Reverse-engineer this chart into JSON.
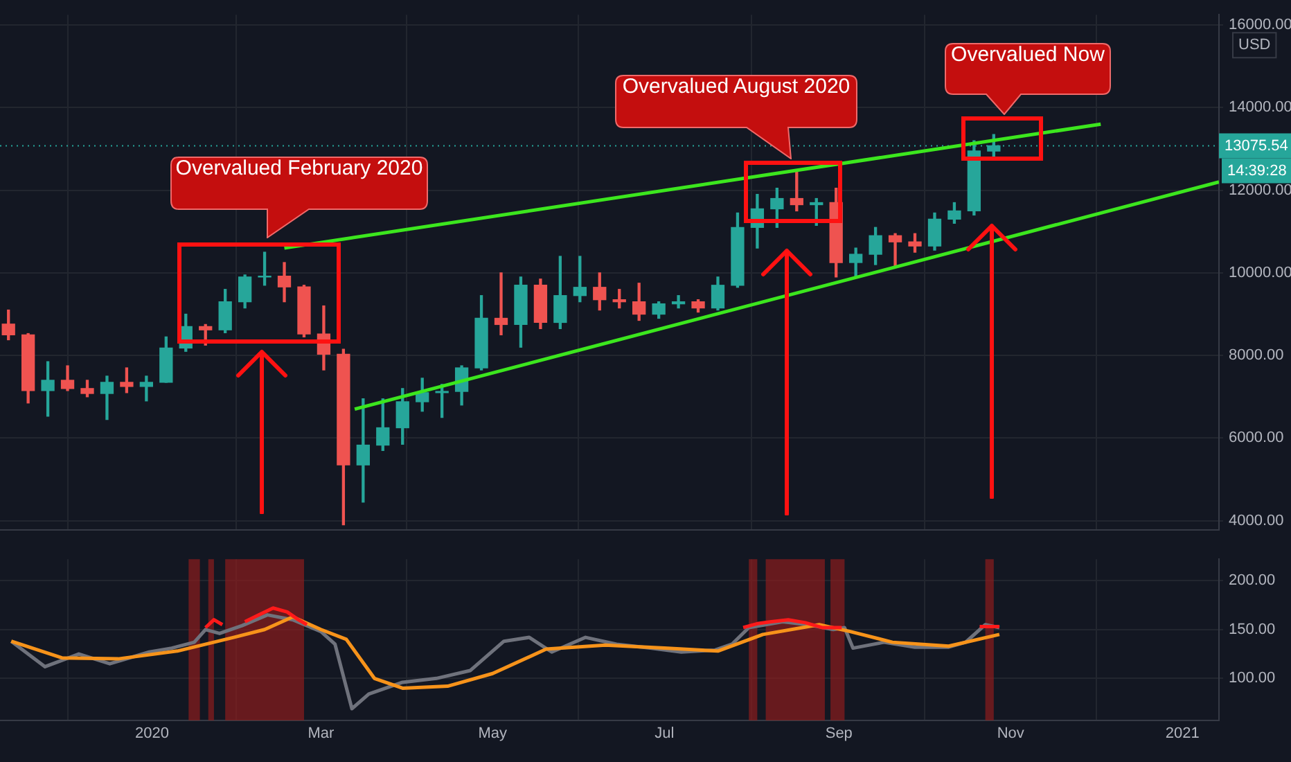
{
  "chart_data": [
    {
      "type": "candlestick",
      "ylabel": "USD",
      "x": [
        "2019-11-11",
        "2019-11-18",
        "2019-11-25",
        "2019-12-02",
        "2019-12-09",
        "2019-12-16",
        "2019-12-23",
        "2019-12-30",
        "2020-01-06",
        "2020-01-13",
        "2020-01-20",
        "2020-01-27",
        "2020-02-03",
        "2020-02-10",
        "2020-02-17",
        "2020-02-24",
        "2020-03-02",
        "2020-03-09",
        "2020-03-16",
        "2020-03-23",
        "2020-03-30",
        "2020-04-06",
        "2020-04-13",
        "2020-04-20",
        "2020-04-27",
        "2020-05-04",
        "2020-05-11",
        "2020-05-18",
        "2020-05-25",
        "2020-06-01",
        "2020-06-08",
        "2020-06-15",
        "2020-06-22",
        "2020-06-29",
        "2020-07-06",
        "2020-07-13",
        "2020-07-20",
        "2020-07-27",
        "2020-08-03",
        "2020-08-10",
        "2020-08-17",
        "2020-08-24",
        "2020-08-31",
        "2020-09-07",
        "2020-09-14",
        "2020-09-21",
        "2020-09-28",
        "2020-10-05",
        "2020-10-12",
        "2020-10-19",
        "2020-10-26"
      ],
      "ohlc": [
        [
          8760,
          9100,
          8380,
          8500
        ],
        [
          8500,
          8530,
          6850,
          7150
        ],
        [
          7150,
          7850,
          6530,
          7400
        ],
        [
          7400,
          7750,
          7150,
          7200
        ],
        [
          7200,
          7400,
          7000,
          7080
        ],
        [
          7080,
          7500,
          6450,
          7350
        ],
        [
          7350,
          7700,
          7100,
          7250
        ],
        [
          7250,
          7500,
          6900,
          7350
        ],
        [
          7350,
          8450,
          7350,
          8180
        ],
        [
          8180,
          9000,
          8100,
          8700
        ],
        [
          8700,
          8750,
          8250,
          8620
        ],
        [
          8620,
          9600,
          8550,
          9300
        ],
        [
          9300,
          9950,
          9150,
          9900
        ],
        [
          9900,
          10500,
          9700,
          9920
        ],
        [
          9920,
          10250,
          9300,
          9660
        ],
        [
          9660,
          9700,
          8450,
          8520
        ],
        [
          8520,
          9200,
          7650,
          8030
        ],
        [
          8030,
          8150,
          3900,
          5350
        ],
        [
          5350,
          6950,
          4450,
          5830
        ],
        [
          5830,
          6950,
          5700,
          6250
        ],
        [
          6250,
          7200,
          5850,
          6880
        ],
        [
          6880,
          7450,
          6650,
          7100
        ],
        [
          7100,
          7300,
          6500,
          7130
        ],
        [
          7130,
          7750,
          6800,
          7700
        ],
        [
          7700,
          9450,
          7650,
          8900
        ],
        [
          8900,
          10000,
          8500,
          8750
        ],
        [
          8750,
          9900,
          8200,
          9700
        ],
        [
          9700,
          9850,
          8650,
          8800
        ],
        [
          8800,
          10400,
          8650,
          9450
        ],
        [
          9450,
          10400,
          9300,
          9650
        ],
        [
          9650,
          10000,
          9100,
          9350
        ],
        [
          9350,
          9600,
          9150,
          9300
        ],
        [
          9300,
          9750,
          8850,
          9000
        ],
        [
          9000,
          9300,
          8900,
          9250
        ],
        [
          9250,
          9450,
          9150,
          9300
        ],
        [
          9300,
          9350,
          9050,
          9150
        ],
        [
          9150,
          9900,
          9100,
          9700
        ],
        [
          9700,
          11450,
          9650,
          11100
        ],
        [
          11100,
          11900,
          10600,
          11550
        ],
        [
          11550,
          12050,
          11100,
          11800
        ],
        [
          11800,
          12450,
          11500,
          11650
        ],
        [
          11650,
          11800,
          11150,
          11700
        ],
        [
          11700,
          12050,
          9900,
          10250
        ],
        [
          10250,
          10600,
          9900,
          10450
        ],
        [
          10450,
          11100,
          10200,
          10900
        ],
        [
          10900,
          10950,
          10150,
          10750
        ],
        [
          10750,
          10950,
          10500,
          10650
        ],
        [
          10650,
          11450,
          10550,
          11300
        ],
        [
          11300,
          11700,
          11200,
          11500
        ],
        [
          11500,
          13200,
          11400,
          12950
        ],
        [
          12950,
          13350,
          12800,
          13075.54
        ]
      ],
      "colors": [
        "#ef5350",
        "#ef5350",
        "#26a69a",
        "#ef5350",
        "#ef5350",
        "#26a69a",
        "#ef5350",
        "#26a69a",
        "#26a69a",
        "#26a69a",
        "#ef5350",
        "#26a69a",
        "#26a69a",
        "#26a69a",
        "#ef5350",
        "#ef5350",
        "#ef5350",
        "#ef5350",
        "#26a69a",
        "#26a69a",
        "#26a69a",
        "#26a69a",
        "#26a69a",
        "#26a69a",
        "#26a69a",
        "#ef5350",
        "#26a69a",
        "#ef5350",
        "#26a69a",
        "#26a69a",
        "#ef5350",
        "#ef5350",
        "#ef5350",
        "#26a69a",
        "#26a69a",
        "#ef5350",
        "#26a69a",
        "#26a69a",
        "#26a69a",
        "#26a69a",
        "#ef5350",
        "#26a69a",
        "#ef5350",
        "#26a69a",
        "#26a69a",
        "#ef5350",
        "#ef5350",
        "#26a69a",
        "#26a69a",
        "#26a69a",
        "#26a69a"
      ],
      "series": [
        {
          "type": "line",
          "color": "#3ce61e",
          "x": [
            "2020-02-17",
            "2020-12-03"
          ],
          "values": [
            10600,
            13600
          ]
        },
        {
          "type": "line",
          "color": "#3ce61e",
          "x": [
            "2020-03-13",
            "2021-01-14"
          ],
          "values": [
            6700,
            12200
          ]
        }
      ],
      "marker": "none",
      "xlim": [
        "2019-11-08",
        "2021-01-14"
      ],
      "xticks": [
        {
          "value": "2020-01-01",
          "label": null
        },
        {
          "value": "2020-03-01",
          "label": null
        },
        {
          "value": "2020-05-01",
          "label": null
        },
        {
          "value": "2020-07-01",
          "label": null
        },
        {
          "value": "2020-09-01",
          "label": null
        },
        {
          "value": "2020-11-01",
          "label": null
        },
        {
          "value": "2021-01-01",
          "label": null
        }
      ],
      "ylim": [
        3780,
        16250
      ],
      "yticks": [
        {
          "value": 4000,
          "label": "4000.00"
        },
        {
          "value": 6000,
          "label": "6000.00"
        },
        {
          "value": 8000,
          "label": "8000.00"
        },
        {
          "value": 10000,
          "label": "10000.00"
        },
        {
          "value": 12000,
          "label": "12000.00"
        },
        {
          "value": 14000,
          "label": "14000.00"
        },
        {
          "value": 16000,
          "label": "16000.00"
        }
      ],
      "ref_lines": [
        {
          "axis": "y",
          "value": 13075.54,
          "label": "13075.54",
          "color": "#26a69a",
          "line_style": "dotted"
        }
      ],
      "annotations": [
        "Overvalued February 2020",
        "Overvalued August 2020",
        "Overvalued Now",
        "14:39:28"
      ],
      "grid": true,
      "tick_labels": "y",
      "legend": false
    },
    {
      "type": "line",
      "series": [
        {
          "color": "#6f727c",
          "x": [
            "2019-11-12",
            "2019-11-24",
            "2019-12-06",
            "2019-12-17",
            "2019-12-31",
            "2020-01-08",
            "2020-01-16",
            "2020-01-20",
            "2020-01-25",
            "2020-02-02",
            "2020-02-11",
            "2020-02-20",
            "2020-03-01",
            "2020-03-06",
            "2020-03-12",
            "2020-03-18",
            "2020-03-30",
            "2020-04-11",
            "2020-04-23",
            "2020-05-05",
            "2020-05-14",
            "2020-05-22",
            "2020-06-03",
            "2020-06-14",
            "2020-06-26",
            "2020-07-07",
            "2020-07-19",
            "2020-07-25",
            "2020-07-31",
            "2020-08-12",
            "2020-08-21",
            "2020-08-30",
            "2020-09-03",
            "2020-09-06",
            "2020-09-17",
            "2020-09-28",
            "2020-10-10",
            "2020-10-16",
            "2020-10-23",
            "2020-10-28"
          ],
          "values": [
            138,
            112,
            125,
            115,
            127,
            131,
            137,
            150,
            146,
            154,
            165,
            160,
            148,
            135,
            69,
            84,
            96,
            100,
            108,
            138,
            142,
            127,
            142,
            135,
            131,
            127,
            129,
            135,
            152,
            158,
            155,
            150,
            152,
            131,
            137,
            132,
            132,
            137,
            155,
            152
          ]
        },
        {
          "color": "#f7931a",
          "x": [
            "2019-11-12",
            "2019-11-30",
            "2019-12-20",
            "2020-01-10",
            "2020-01-30",
            "2020-02-10",
            "2020-02-20",
            "2020-03-01",
            "2020-03-10",
            "2020-03-20",
            "2020-03-30",
            "2020-04-15",
            "2020-05-01",
            "2020-05-20",
            "2020-06-10",
            "2020-07-01",
            "2020-07-20",
            "2020-08-05",
            "2020-08-25",
            "2020-09-05",
            "2020-09-20",
            "2020-10-10",
            "2020-10-28"
          ],
          "values": [
            138,
            121,
            120,
            128,
            142,
            150,
            163,
            150,
            140,
            100,
            90,
            92,
            105,
            130,
            134,
            131,
            128,
            145,
            155,
            148,
            137,
            133,
            145
          ]
        },
        {
          "color": "#ff1a1a",
          "x": [
            "2020-01-20",
            "2020-01-23",
            "2020-01-26",
            "2020-01-28",
            "2020-02-03",
            "2020-02-08",
            "2020-02-13",
            "2020-02-18",
            "2020-02-22",
            "2020-02-25",
            "2020-07-27",
            "2020-07-29",
            "2020-08-03",
            "2020-08-08",
            "2020-08-14",
            "2020-08-20",
            "2020-08-26",
            "2020-09-02",
            "2020-10-19",
            "2020-10-21",
            "2020-10-28"
          ],
          "values": [
            152,
            160,
            155,
            null,
            158,
            165,
            172,
            168,
            160,
            155,
            null,
            152,
            156,
            158,
            160,
            157,
            152,
            152,
            null,
            153,
            153
          ]
        }
      ],
      "marker": "none",
      "bands": [
        {
          "axis": "x",
          "from": "2020-01-14",
          "to": "2020-01-18",
          "color": "#8b1c1c"
        },
        {
          "axis": "x",
          "from": "2020-01-21",
          "to": "2020-01-23",
          "color": "#8b1c1c"
        },
        {
          "axis": "x",
          "from": "2020-01-27",
          "to": "2020-02-24",
          "color": "#8b1c1c"
        },
        {
          "axis": "x",
          "from": "2020-07-31",
          "to": "2020-08-03",
          "color": "#8b1c1c"
        },
        {
          "axis": "x",
          "from": "2020-08-06",
          "to": "2020-08-27",
          "color": "#8b1c1c"
        },
        {
          "axis": "x",
          "from": "2020-08-29",
          "to": "2020-09-03",
          "color": "#8b1c1c"
        },
        {
          "axis": "x",
          "from": "2020-10-23",
          "to": "2020-10-26",
          "color": "#8b1c1c"
        }
      ],
      "xlim": [
        "2019-11-08",
        "2021-01-14"
      ],
      "xticks": [
        {
          "value": "2020-01-01",
          "label": "2020"
        },
        {
          "value": "2020-03-01",
          "label": "Mar"
        },
        {
          "value": "2020-05-01",
          "label": "May"
        },
        {
          "value": "2020-07-01",
          "label": "Jul"
        },
        {
          "value": "2020-09-01",
          "label": "Sep"
        },
        {
          "value": "2020-11-01",
          "label": "Nov"
        },
        {
          "value": "2021-01-01",
          "label": "2021"
        }
      ],
      "ylim": [
        57,
        222
      ],
      "yticks": [
        {
          "value": 100,
          "label": "100.00"
        },
        {
          "value": 150,
          "label": "150.00"
        },
        {
          "value": 200,
          "label": "200.00"
        }
      ],
      "grid": true,
      "legend": false
    }
  ]
}
